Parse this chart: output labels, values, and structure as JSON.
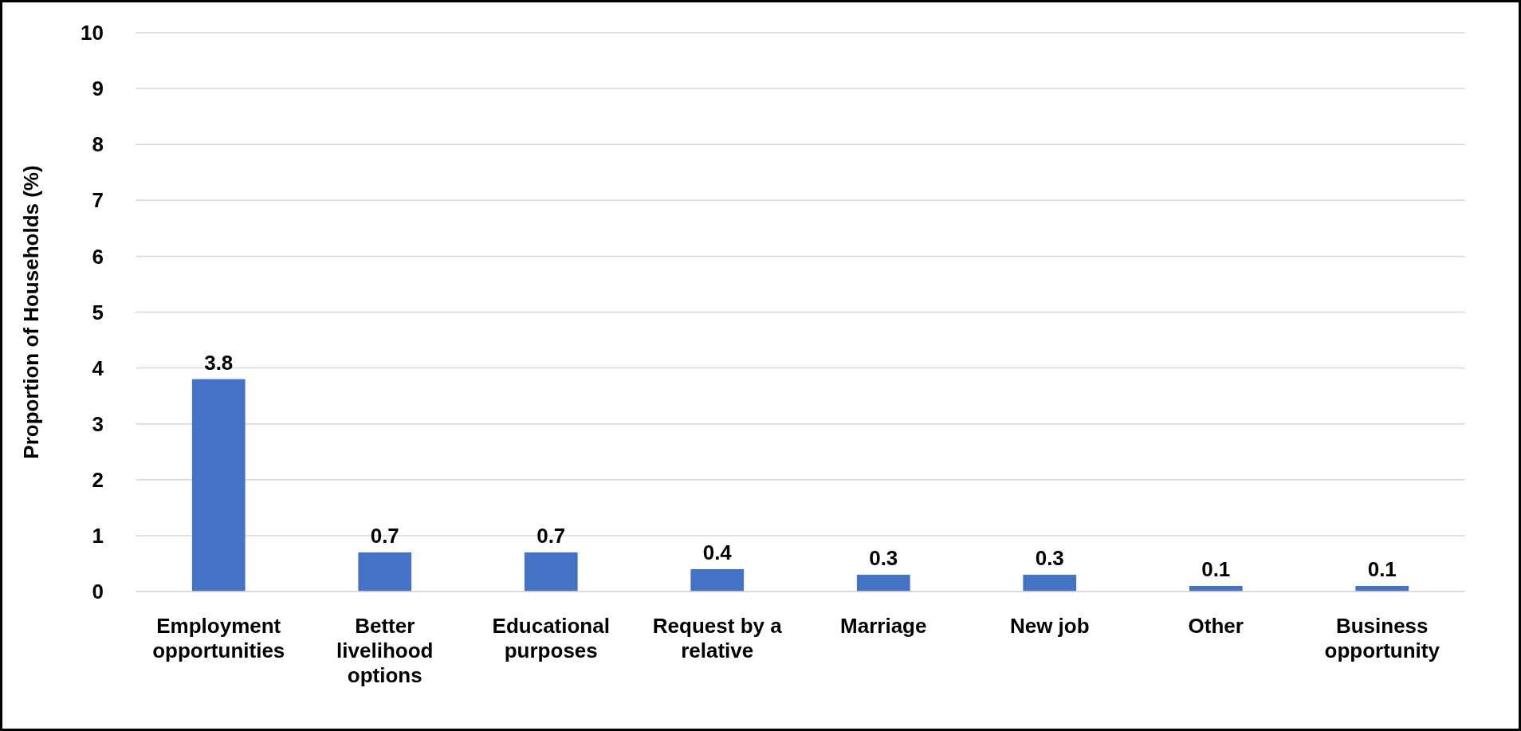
{
  "chart_data": {
    "type": "bar",
    "ylabel": "Proportion of Households (%)",
    "categories": [
      "Employment opportunities",
      "Better livelihood options",
      "Educational purposes",
      "Request by a relative",
      "Marriage",
      "New job",
      "Other",
      "Business opportunity"
    ],
    "values": [
      3.8,
      0.7,
      0.7,
      0.4,
      0.3,
      0.3,
      0.1,
      0.1
    ],
    "color": "#4472c4",
    "ylim": [
      0,
      10
    ],
    "yticks": [
      0,
      1,
      2,
      3,
      4,
      5,
      6,
      7,
      8,
      9,
      10
    ],
    "grid": "y",
    "data_labels": true
  }
}
